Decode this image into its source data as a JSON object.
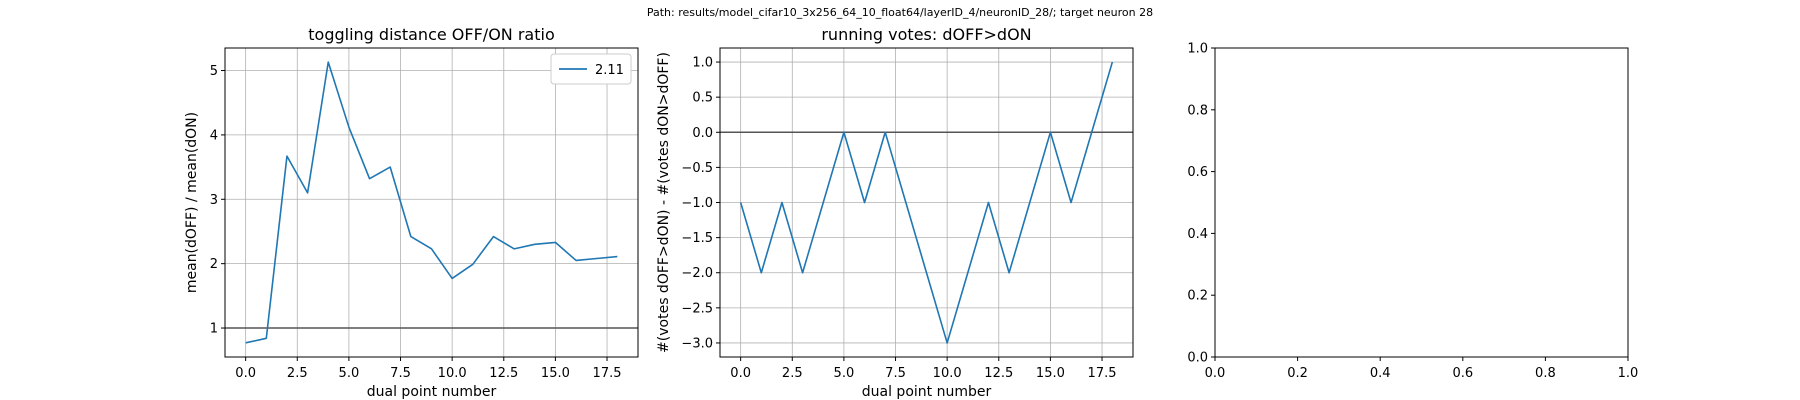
{
  "page": {
    "title": "Path: results/model_cifar10_3x256_64_10_float64/layerID_4/neuronID_28/; target neuron 28"
  },
  "colors": {
    "series": "#1f77b4",
    "refline": "#555555",
    "grid": "#b0b0b0"
  },
  "chart_data": [
    {
      "type": "line",
      "title": "toggling distance OFF/ON ratio",
      "xlabel": "dual point number",
      "ylabel": "mean(dOFF) / mean(dON)",
      "xlim": [
        -1,
        19
      ],
      "ylim": [
        0.55,
        5.35
      ],
      "xticks": [
        0,
        2.5,
        5,
        7.5,
        10,
        12.5,
        15,
        17.5
      ],
      "xtick_labels": [
        "0.0",
        "2.5",
        "5.0",
        "7.5",
        "10.0",
        "12.5",
        "15.0",
        "17.5"
      ],
      "yticks": [
        1,
        2,
        3,
        4,
        5
      ],
      "ytick_labels": [
        "1",
        "2",
        "3",
        "4",
        "5"
      ],
      "grid": true,
      "hline": 1,
      "legend": {
        "position": "top-right",
        "entries": [
          "2.11"
        ]
      },
      "series": [
        {
          "name": "2.11",
          "x": [
            0,
            1,
            2,
            3,
            4,
            5,
            6,
            7,
            8,
            9,
            10,
            11,
            12,
            13,
            14,
            15,
            16,
            17,
            18
          ],
          "y": [
            0.77,
            0.84,
            3.67,
            3.1,
            5.13,
            4.12,
            3.32,
            3.5,
            2.42,
            2.23,
            1.77,
            1.99,
            2.42,
            2.23,
            2.3,
            2.33,
            2.05,
            2.08,
            2.11
          ]
        }
      ]
    },
    {
      "type": "line",
      "title": "running votes: dOFF>dON",
      "xlabel": "dual point number",
      "ylabel": "#(votes dOFF>dON) - #(votes dON>dOFF)",
      "xlim": [
        -1,
        19
      ],
      "ylim": [
        -3.2,
        1.2
      ],
      "xticks": [
        0,
        2.5,
        5,
        7.5,
        10,
        12.5,
        15,
        17.5
      ],
      "xtick_labels": [
        "0.0",
        "2.5",
        "5.0",
        "7.5",
        "10.0",
        "12.5",
        "15.0",
        "17.5"
      ],
      "yticks": [
        -3,
        -2.5,
        -2,
        -1.5,
        -1,
        -0.5,
        0,
        0.5,
        1
      ],
      "ytick_labels": [
        "−3.0",
        "−2.5",
        "−2.0",
        "−1.5",
        "−1.0",
        "−0.5",
        "0.0",
        "0.5",
        "1.0"
      ],
      "grid": true,
      "hline": 0,
      "series": [
        {
          "x": [
            0,
            1,
            2,
            3,
            4,
            5,
            6,
            7,
            8,
            9,
            10,
            11,
            12,
            13,
            14,
            15,
            16,
            17,
            18
          ],
          "y": [
            -1,
            -2,
            -1,
            -2,
            -1,
            0,
            -1,
            0,
            -1,
            -2,
            -3,
            -2,
            -1,
            -2,
            -1,
            0,
            -1,
            0,
            1
          ]
        }
      ]
    },
    {
      "type": "line",
      "title": "",
      "xlabel": "",
      "ylabel": "",
      "xlim": [
        0,
        1
      ],
      "ylim": [
        0,
        1
      ],
      "xticks": [
        0,
        0.2,
        0.4,
        0.6,
        0.8,
        1
      ],
      "xtick_labels": [
        "0.0",
        "0.2",
        "0.4",
        "0.6",
        "0.8",
        "1.0"
      ],
      "yticks": [
        0,
        0.2,
        0.4,
        0.6,
        0.8,
        1
      ],
      "ytick_labels": [
        "0.0",
        "0.2",
        "0.4",
        "0.6",
        "0.8",
        "1.0"
      ],
      "grid": false,
      "series": []
    }
  ]
}
